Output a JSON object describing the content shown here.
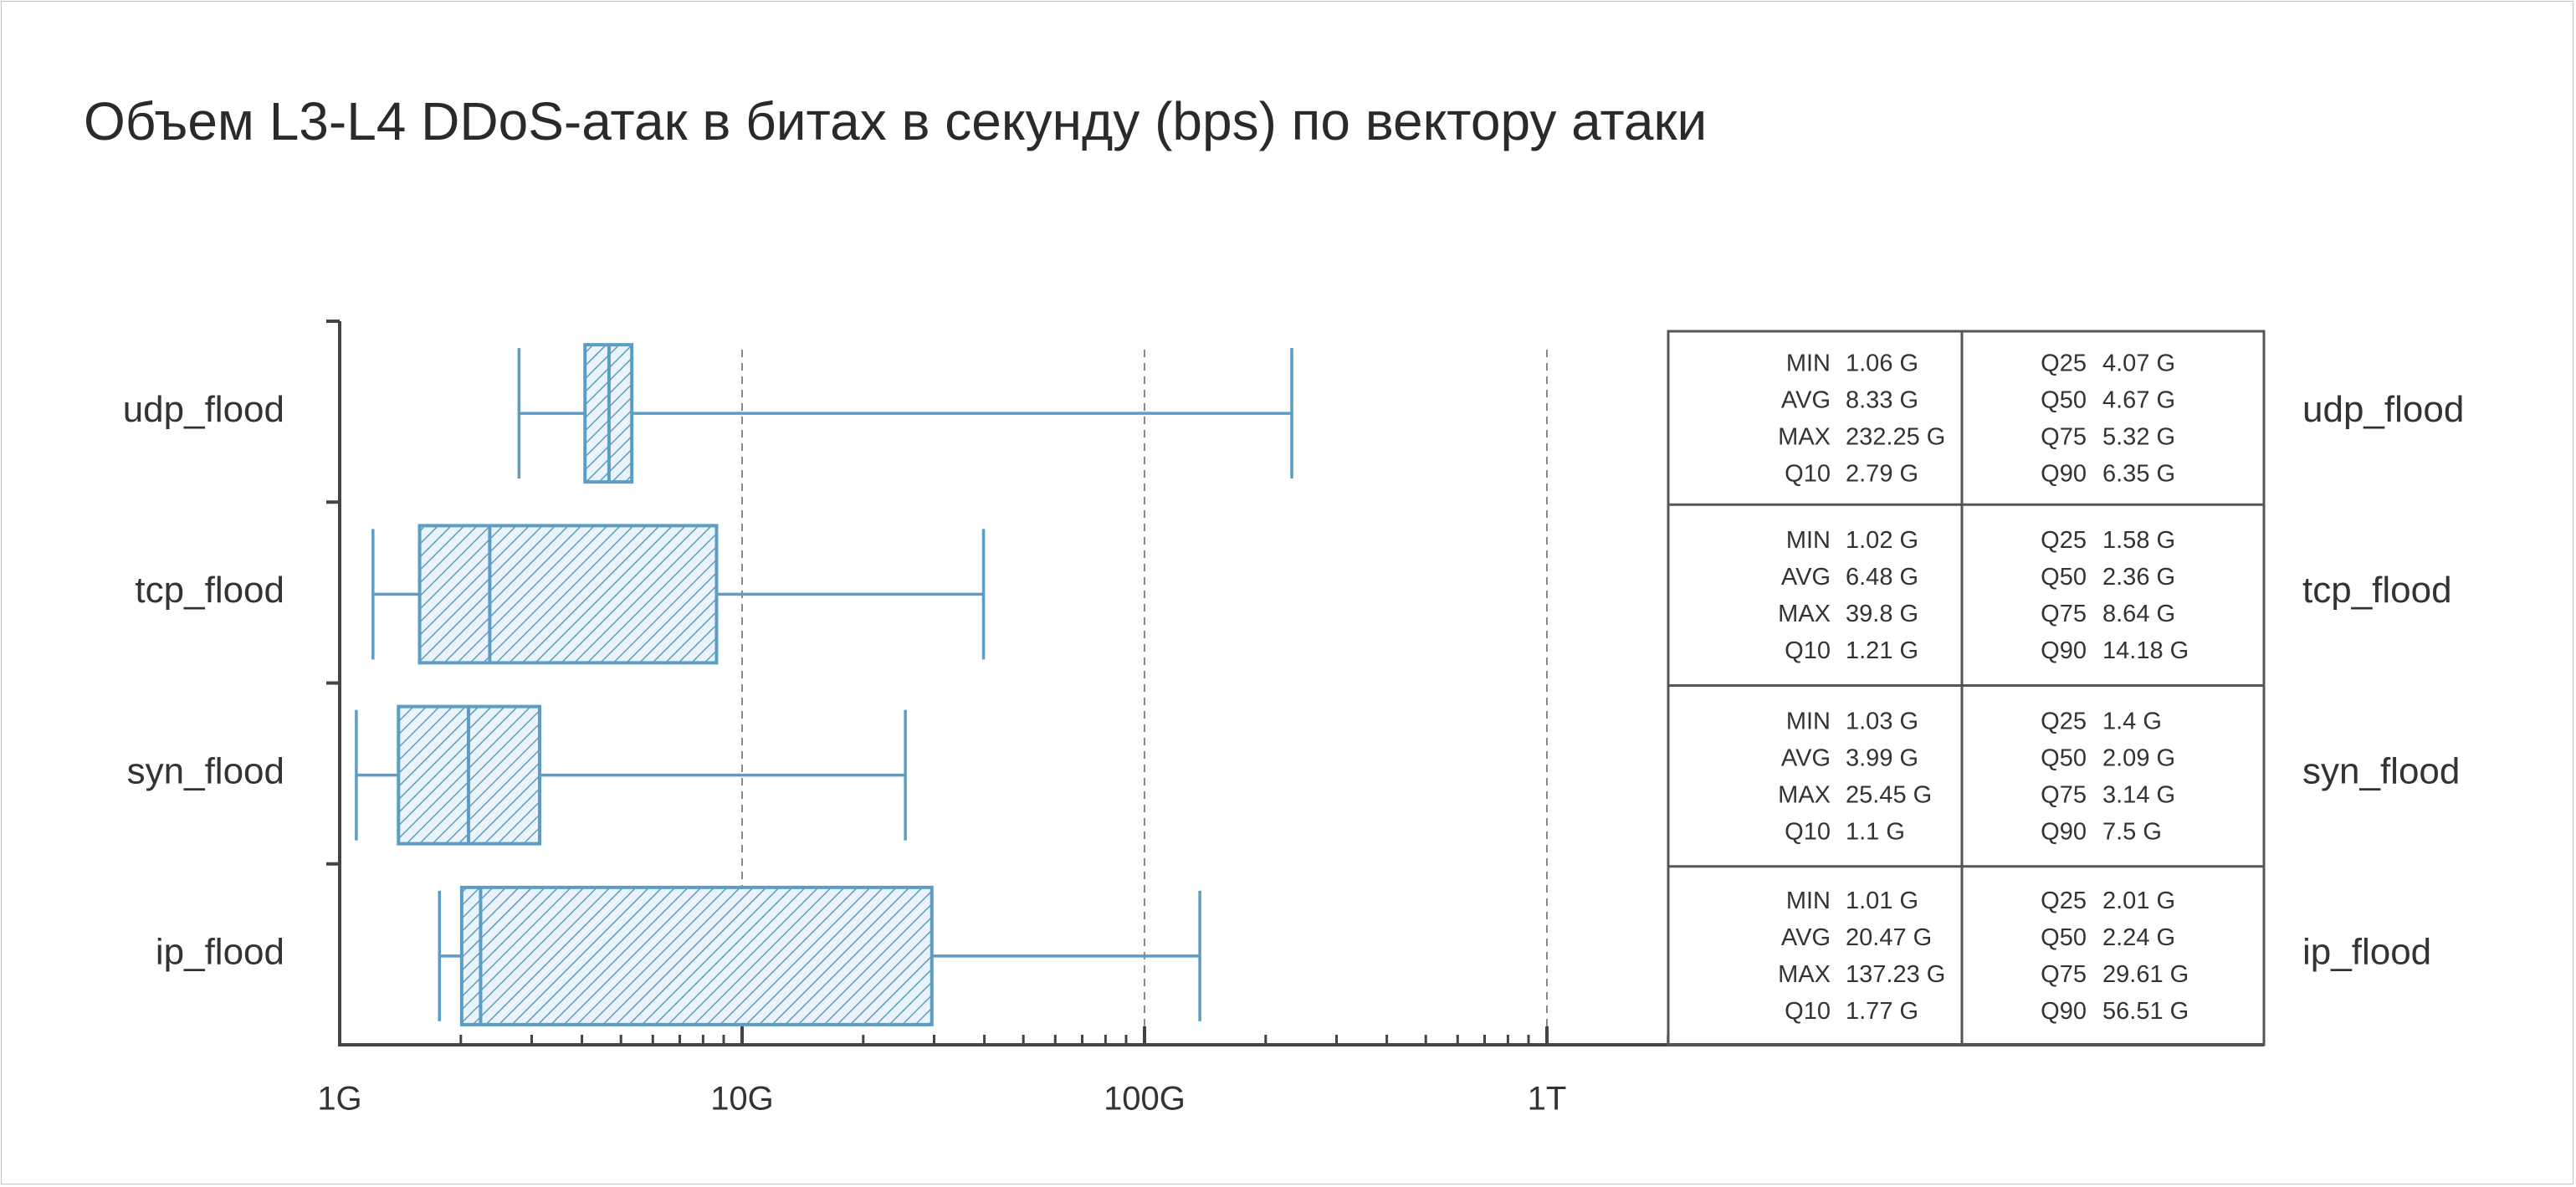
{
  "chart_data": {
    "type": "boxplot",
    "title": "Объем L3-L4 DDoS-атак в битах в секунду (bps) по вектору атаки",
    "x_scale": "log",
    "x_ticks": [
      {
        "value": 1,
        "label": "1G"
      },
      {
        "value": 10,
        "label": "10G"
      },
      {
        "value": 100,
        "label": "100G"
      },
      {
        "value": 1000,
        "label": "1T"
      }
    ],
    "x_unit": "G",
    "xlim": [
      1,
      3000
    ],
    "grid": "vertical dashed at 10G, 100G, 1T",
    "colors": {
      "box_stroke": "#5b9dc4",
      "box_fill": "#eaf3f9",
      "hatch": "#5b9dc4",
      "axis": "#444444",
      "grid": "#888888",
      "table_border": "#555555"
    },
    "series": [
      {
        "name": "udp_flood",
        "label": "udp_flood",
        "min": 1.06,
        "avg": 8.33,
        "max": 232.25,
        "q10": 2.79,
        "q25": 4.07,
        "q50": 4.67,
        "q75": 5.32,
        "q90": 6.35,
        "stats_left": [
          {
            "k": "MIN",
            "v": "1.06 G"
          },
          {
            "k": "AVG",
            "v": "8.33 G"
          },
          {
            "k": "MAX",
            "v": "232.25 G"
          },
          {
            "k": "Q10",
            "v": "2.79 G"
          }
        ],
        "stats_right": [
          {
            "k": "Q25",
            "v": "4.07 G"
          },
          {
            "k": "Q50",
            "v": "4.67 G"
          },
          {
            "k": "Q75",
            "v": "5.32 G"
          },
          {
            "k": "Q90",
            "v": "6.35 G"
          }
        ]
      },
      {
        "name": "tcp_flood",
        "label": "tcp_flood",
        "min": 1.02,
        "avg": 6.48,
        "max": 39.8,
        "q10": 1.21,
        "q25": 1.58,
        "q50": 2.36,
        "q75": 8.64,
        "q90": 14.18,
        "stats_left": [
          {
            "k": "MIN",
            "v": "1.02 G"
          },
          {
            "k": "AVG",
            "v": "6.48 G"
          },
          {
            "k": "MAX",
            "v": "39.8 G"
          },
          {
            "k": "Q10",
            "v": "1.21 G"
          }
        ],
        "stats_right": [
          {
            "k": "Q25",
            "v": "1.58 G"
          },
          {
            "k": "Q50",
            "v": "2.36 G"
          },
          {
            "k": "Q75",
            "v": "8.64 G"
          },
          {
            "k": "Q90",
            "v": "14.18 G"
          }
        ]
      },
      {
        "name": "syn_flood",
        "label": "syn_flood",
        "min": 1.03,
        "avg": 3.99,
        "max": 25.45,
        "q10": 1.1,
        "q25": 1.4,
        "q50": 2.09,
        "q75": 3.14,
        "q90": 7.5,
        "stats_left": [
          {
            "k": "MIN",
            "v": "1.03 G"
          },
          {
            "k": "AVG",
            "v": "3.99 G"
          },
          {
            "k": "MAX",
            "v": "25.45 G"
          },
          {
            "k": "Q10",
            "v": "1.1 G"
          }
        ],
        "stats_right": [
          {
            "k": "Q25",
            "v": "1.4 G"
          },
          {
            "k": "Q50",
            "v": "2.09 G"
          },
          {
            "k": "Q75",
            "v": "3.14 G"
          },
          {
            "k": "Q90",
            "v": "7.5 G"
          }
        ]
      },
      {
        "name": "ip_flood",
        "label": "ip_flood",
        "min": 1.01,
        "avg": 20.47,
        "max": 137.23,
        "q10": 1.77,
        "q25": 2.01,
        "q50": 2.24,
        "q75": 29.61,
        "q90": 56.51,
        "stats_left": [
          {
            "k": "MIN",
            "v": "1.01 G"
          },
          {
            "k": "AVG",
            "v": "20.47 G"
          },
          {
            "k": "MAX",
            "v": "137.23 G"
          },
          {
            "k": "Q10",
            "v": "1.77 G"
          }
        ],
        "stats_right": [
          {
            "k": "Q25",
            "v": "2.01 G"
          },
          {
            "k": "Q50",
            "v": "2.24 G"
          },
          {
            "k": "Q75",
            "v": "29.61 G"
          },
          {
            "k": "Q90",
            "v": "56.51 G"
          }
        ]
      }
    ]
  }
}
